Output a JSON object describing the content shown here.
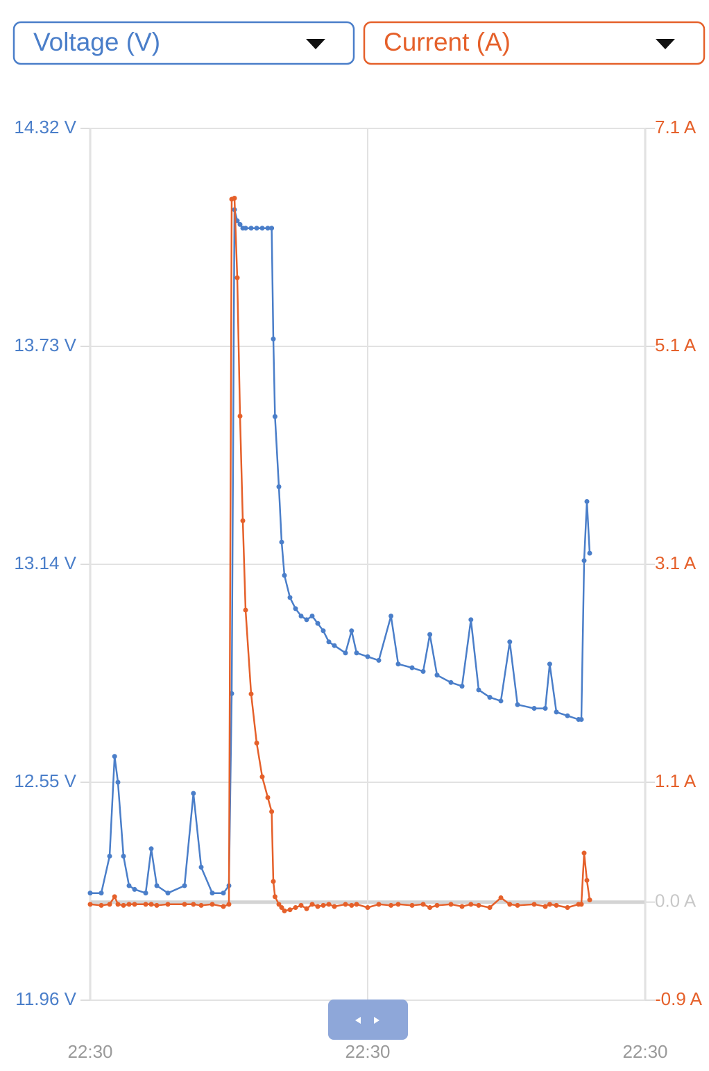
{
  "chart_data": {
    "type": "line",
    "x": [
      0,
      2,
      3.5,
      4.4,
      5,
      6,
      7,
      8,
      10,
      11,
      12,
      14,
      17,
      18.6,
      20,
      22,
      24,
      25,
      25.5,
      26,
      26.5,
      27,
      27.5,
      28,
      29,
      30,
      31,
      32,
      32.7,
      33,
      33.3,
      34,
      34.5,
      35,
      36,
      37,
      38,
      39,
      40,
      41,
      42,
      43,
      44,
      46,
      47.1,
      48,
      50,
      52,
      54.2,
      55.5,
      58,
      60,
      61.2,
      62.5,
      65,
      67,
      68.6,
      70,
      72,
      74,
      75.6,
      77,
      80,
      82,
      82.8,
      84,
      86,
      88,
      88.5,
      89,
      89.5,
      90
    ],
    "xlim": [
      0,
      100
    ],
    "xticks": [
      {
        "value": 0,
        "label": "22:30"
      },
      {
        "value": 50,
        "label": "22:30"
      },
      {
        "value": 100,
        "label": "22:30"
      }
    ],
    "ylim": [
      11.96,
      14.32
    ],
    "yticks": [
      {
        "value": 11.96,
        "label": "11.96 V"
      },
      {
        "value": 12.55,
        "label": "12.55 V"
      },
      {
        "value": 13.14,
        "label": "13.14 V"
      },
      {
        "value": 13.73,
        "label": "13.73 V"
      },
      {
        "value": 14.32,
        "label": "14.32 V"
      }
    ],
    "y2lim": [
      -0.9,
      7.1
    ],
    "y2ticks": [
      {
        "value": -0.9,
        "label": "-0.9 A"
      },
      {
        "value": 0,
        "label": "0.0 A"
      },
      {
        "value": 1.1,
        "label": "1.1 A"
      },
      {
        "value": 3.1,
        "label": "3.1 A"
      },
      {
        "value": 5.1,
        "label": "5.1 A"
      },
      {
        "value": 7.1,
        "label": "7.1 A"
      }
    ],
    "grid": true,
    "series": [
      {
        "name": "Voltage (V)",
        "color": "#4a7ec9",
        "values": [
          12.25,
          12.25,
          12.35,
          12.62,
          12.55,
          12.35,
          12.27,
          12.26,
          12.25,
          12.37,
          12.27,
          12.25,
          12.27,
          12.52,
          12.32,
          12.25,
          12.25,
          12.27,
          12.79,
          14.1,
          14.07,
          14.06,
          14.05,
          14.05,
          14.05,
          14.05,
          14.05,
          14.05,
          14.05,
          13.75,
          13.54,
          13.35,
          13.2,
          13.11,
          13.05,
          13.02,
          13.0,
          12.99,
          13.0,
          12.98,
          12.96,
          12.93,
          12.92,
          12.9,
          12.96,
          12.9,
          12.89,
          12.88,
          13.0,
          12.87,
          12.86,
          12.85,
          12.95,
          12.84,
          12.82,
          12.81,
          12.99,
          12.8,
          12.78,
          12.77,
          12.93,
          12.76,
          12.75,
          12.75,
          12.87,
          12.74,
          12.73,
          12.72,
          12.72,
          13.15,
          13.31,
          13.17
        ]
      },
      {
        "name": "Current (A)",
        "color": "#e5602a",
        "axis": "y2",
        "values": [
          -0.02,
          -0.03,
          -0.02,
          0.05,
          -0.02,
          -0.03,
          -0.02,
          -0.02,
          -0.02,
          -0.02,
          -0.03,
          -0.02,
          -0.02,
          -0.02,
          -0.03,
          -0.02,
          -0.04,
          -0.02,
          6.45,
          6.46,
          5.73,
          4.46,
          3.5,
          2.68,
          1.91,
          1.46,
          1.15,
          0.96,
          0.83,
          0.19,
          0.05,
          -0.02,
          -0.05,
          -0.08,
          -0.07,
          -0.05,
          -0.03,
          -0.06,
          -0.02,
          -0.04,
          -0.03,
          -0.02,
          -0.04,
          -0.02,
          -0.03,
          -0.02,
          -0.05,
          -0.02,
          -0.03,
          -0.02,
          -0.03,
          -0.02,
          -0.05,
          -0.03,
          -0.02,
          -0.04,
          -0.02,
          -0.03,
          -0.05,
          0.04,
          -0.02,
          -0.03,
          -0.02,
          -0.04,
          -0.02,
          -0.03,
          -0.05,
          -0.02,
          -0.02,
          0.45,
          0.2,
          0.02
        ]
      }
    ]
  }
}
